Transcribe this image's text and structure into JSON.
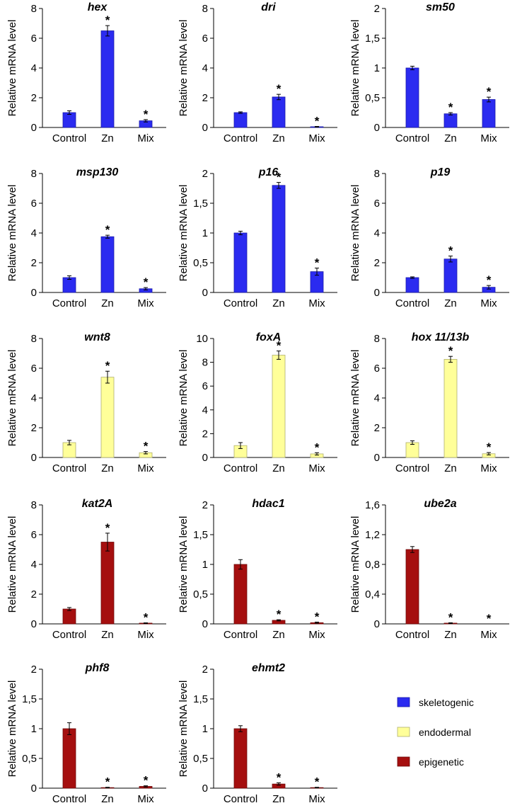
{
  "chart_data": [
    {
      "type": "bar",
      "title": "hex",
      "ylabel": "Relative mRNA level",
      "ylim": [
        0,
        8
      ],
      "yticks": [
        "0",
        "2",
        "4",
        "6",
        "8"
      ],
      "categories": [
        "Control",
        "Zn",
        "Mix"
      ],
      "values": [
        1.0,
        6.5,
        0.45
      ],
      "errors": [
        0.12,
        0.35,
        0.08
      ],
      "significant": [
        false,
        true,
        true
      ],
      "group": "skeletogenic"
    },
    {
      "type": "bar",
      "title": "dri",
      "ylabel": "Relative mRNA level",
      "ylim": [
        0,
        8
      ],
      "yticks": [
        "0",
        "2",
        "4",
        "6",
        "8"
      ],
      "categories": [
        "Control",
        "Zn",
        "Mix"
      ],
      "values": [
        1.0,
        2.05,
        0.05
      ],
      "errors": [
        0.05,
        0.18,
        0.02
      ],
      "significant": [
        false,
        true,
        true
      ],
      "group": "skeletogenic"
    },
    {
      "type": "bar",
      "title": "sm50",
      "ylabel": "Relative mRNA level",
      "ylim": [
        0,
        2
      ],
      "yticks": [
        "0",
        "0,5",
        "1",
        "1,5",
        "2"
      ],
      "categories": [
        "Control",
        "Zn",
        "Mix"
      ],
      "values": [
        1.0,
        0.23,
        0.47
      ],
      "errors": [
        0.03,
        0.02,
        0.04
      ],
      "significant": [
        false,
        true,
        true
      ],
      "group": "skeletogenic"
    },
    {
      "type": "bar",
      "title": "msp130",
      "ylabel": "Relative mRNA level",
      "ylim": [
        0,
        8
      ],
      "yticks": [
        "0",
        "2",
        "4",
        "6",
        "8"
      ],
      "categories": [
        "Control",
        "Zn",
        "Mix"
      ],
      "values": [
        1.0,
        3.75,
        0.25
      ],
      "errors": [
        0.12,
        0.1,
        0.08
      ],
      "significant": [
        false,
        true,
        true
      ],
      "group": "skeletogenic"
    },
    {
      "type": "bar",
      "title": "p16",
      "ylabel": "Relative mRNA level",
      "ylim": [
        0,
        2
      ],
      "yticks": [
        "0",
        "0,5",
        "1",
        "1,5",
        "2"
      ],
      "categories": [
        "Control",
        "Zn",
        "Mix"
      ],
      "values": [
        1.0,
        1.8,
        0.35
      ],
      "errors": [
        0.03,
        0.05,
        0.06
      ],
      "significant": [
        false,
        true,
        true
      ],
      "group": "skeletogenic"
    },
    {
      "type": "bar",
      "title": "p19",
      "ylabel": "Relative mRNA level",
      "ylim": [
        0,
        8
      ],
      "yticks": [
        "0",
        "2",
        "4",
        "6",
        "8"
      ],
      "categories": [
        "Control",
        "Zn",
        "Mix"
      ],
      "values": [
        1.0,
        2.25,
        0.35
      ],
      "errors": [
        0.05,
        0.2,
        0.12
      ],
      "significant": [
        false,
        true,
        true
      ],
      "group": "skeletogenic"
    },
    {
      "type": "bar",
      "title": "wnt8",
      "ylabel": "Relative mRNA level",
      "ylim": [
        0,
        8
      ],
      "yticks": [
        "0",
        "2",
        "4",
        "6",
        "8"
      ],
      "categories": [
        "Control",
        "Zn",
        "Mix"
      ],
      "values": [
        1.0,
        5.4,
        0.32
      ],
      "errors": [
        0.15,
        0.4,
        0.08
      ],
      "significant": [
        false,
        true,
        true
      ],
      "group": "endodermal"
    },
    {
      "type": "bar",
      "title": "foxA",
      "ylabel": "Relative mRNA level",
      "ylim": [
        0,
        10
      ],
      "yticks": [
        "0",
        "2",
        "4",
        "6",
        "8",
        "10"
      ],
      "categories": [
        "Control",
        "Zn",
        "Mix"
      ],
      "values": [
        1.0,
        8.6,
        0.3
      ],
      "errors": [
        0.25,
        0.35,
        0.1
      ],
      "significant": [
        false,
        true,
        true
      ],
      "group": "endodermal"
    },
    {
      "type": "bar",
      "title": "hox 11/13b",
      "ylabel": "Relative mRNA level",
      "ylim": [
        0,
        8
      ],
      "yticks": [
        "0",
        "2",
        "4",
        "6",
        "8"
      ],
      "categories": [
        "Control",
        "Zn",
        "Mix"
      ],
      "values": [
        1.0,
        6.6,
        0.25
      ],
      "errors": [
        0.12,
        0.2,
        0.08
      ],
      "significant": [
        false,
        true,
        true
      ],
      "group": "endodermal"
    },
    {
      "type": "bar",
      "title": "kat2A",
      "ylabel": "Relative mRNA level",
      "ylim": [
        0,
        8
      ],
      "yticks": [
        "0",
        "2",
        "4",
        "6",
        "8"
      ],
      "categories": [
        "Control",
        "Zn",
        "Mix"
      ],
      "values": [
        1.0,
        5.5,
        0.05
      ],
      "errors": [
        0.1,
        0.6,
        0.02
      ],
      "significant": [
        false,
        true,
        true
      ],
      "group": "epigenetic"
    },
    {
      "type": "bar",
      "title": "hdac1",
      "ylabel": "Relative mRNA level",
      "ylim": [
        0,
        2
      ],
      "yticks": [
        "0",
        "0,5",
        "1",
        "1,5",
        "2"
      ],
      "categories": [
        "Control",
        "Zn",
        "Mix"
      ],
      "values": [
        1.0,
        0.06,
        0.02
      ],
      "errors": [
        0.08,
        0.01,
        0.01
      ],
      "significant": [
        false,
        true,
        true
      ],
      "group": "epigenetic"
    },
    {
      "type": "bar",
      "title": "ube2a",
      "ylabel": "Relative mRNA level",
      "ylim": [
        0,
        1.6
      ],
      "yticks": [
        "0",
        "0,4",
        "0,8",
        "1,2",
        "1,6"
      ],
      "categories": [
        "Control",
        "Zn",
        "Mix"
      ],
      "values": [
        1.0,
        0.01,
        0.0
      ],
      "errors": [
        0.04,
        0.005,
        0.0
      ],
      "significant": [
        false,
        true,
        true
      ],
      "group": "epigenetic"
    },
    {
      "type": "bar",
      "title": "phf8",
      "ylabel": "Relative mRNA level",
      "ylim": [
        0,
        2
      ],
      "yticks": [
        "0",
        "0,5",
        "1",
        "1,5",
        "2"
      ],
      "categories": [
        "Control",
        "Zn",
        "Mix"
      ],
      "values": [
        1.0,
        0.01,
        0.03
      ],
      "errors": [
        0.1,
        0.005,
        0.01
      ],
      "significant": [
        false,
        true,
        true
      ],
      "group": "epigenetic"
    },
    {
      "type": "bar",
      "title": "ehmt2",
      "ylabel": "Relative mRNA level",
      "ylim": [
        0,
        2
      ],
      "yticks": [
        "0",
        "0,5",
        "1",
        "1,5",
        "2"
      ],
      "categories": [
        "Control",
        "Zn",
        "Mix"
      ],
      "values": [
        1.0,
        0.07,
        0.01
      ],
      "errors": [
        0.05,
        0.02,
        0.005
      ],
      "significant": [
        false,
        true,
        true
      ],
      "group": "epigenetic"
    }
  ],
  "legend": {
    "placement": "bottom-right",
    "items": [
      {
        "key": "skeletogenic",
        "label": "skeletogenic",
        "color": "#2b2bf0",
        "edge": "#1a1aa8"
      },
      {
        "key": "endodermal",
        "label": "endodermal",
        "color": "#ffff99",
        "edge": "#b0b070"
      },
      {
        "key": "epigenetic",
        "label": "epigenetic",
        "color": "#a50f0f",
        "edge": "#6e0a0a"
      }
    ]
  },
  "significance_marker": "*"
}
